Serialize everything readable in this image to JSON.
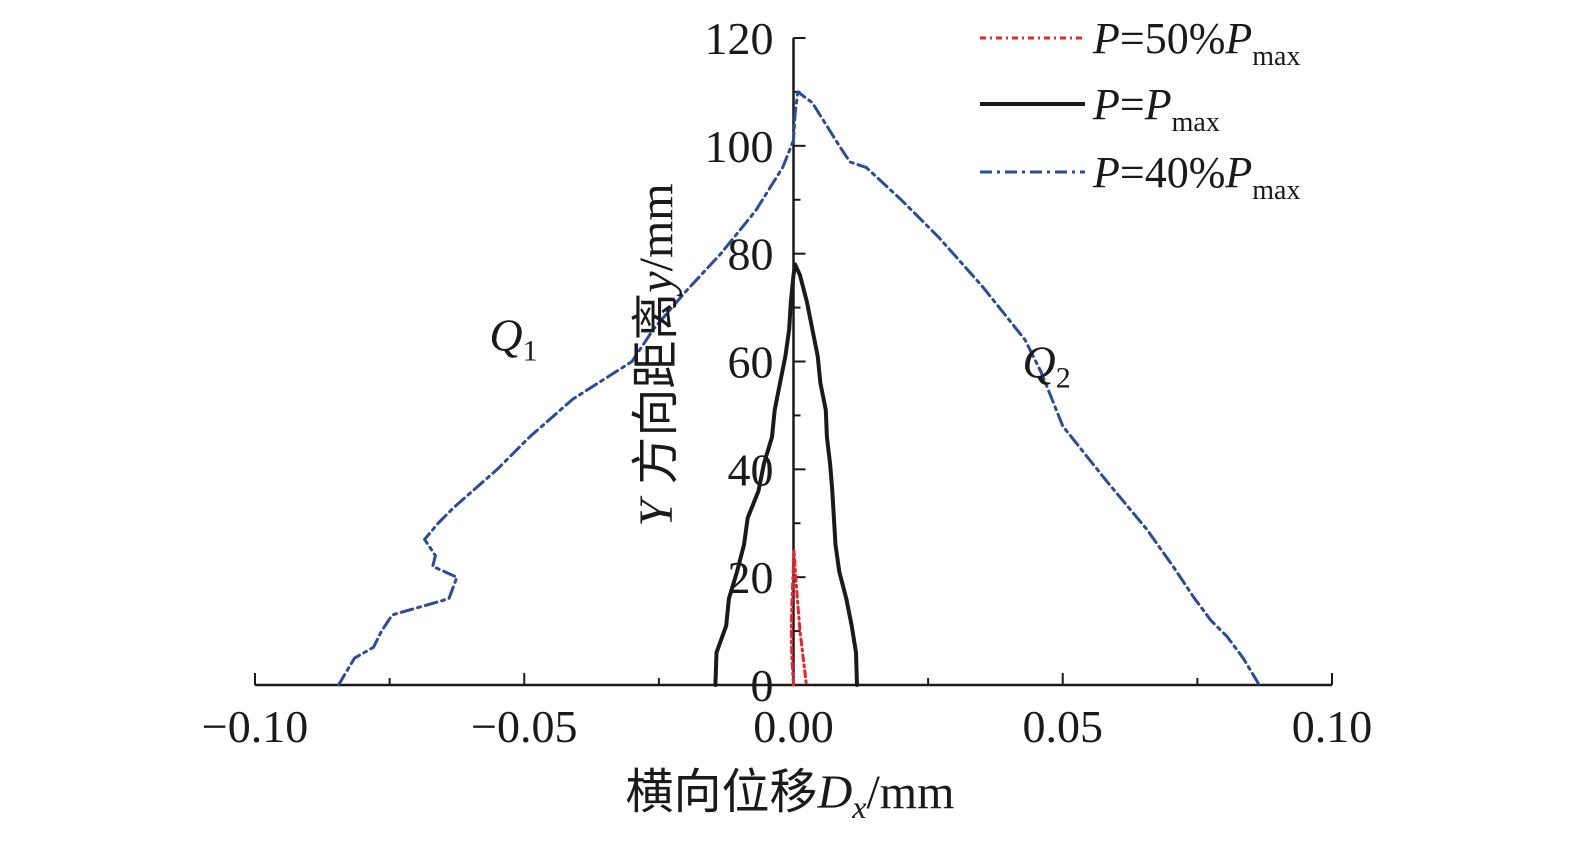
{
  "chart_data": {
    "type": "line",
    "xlabel": {
      "prefix": "横向位移",
      "var": "D",
      "sub": "x",
      "unit": "/mm"
    },
    "ylabel": {
      "var": "Y",
      "text": " 方向距离",
      "var2": "y",
      "unit": "/mm"
    },
    "xlim": [
      -0.1,
      0.1
    ],
    "ylim": [
      0,
      120
    ],
    "xticks": [
      -0.1,
      -0.05,
      0.0,
      0.05,
      0.1
    ],
    "xtick_labels": [
      "−0.10",
      "−0.05",
      "0.00",
      "0.05",
      "0.10"
    ],
    "yticks": [
      0,
      20,
      40,
      60,
      80,
      100,
      120
    ],
    "ytick_labels": [
      "0",
      "20",
      "40",
      "60",
      "80",
      "100",
      "120"
    ],
    "legend_position": "top-right",
    "annotations": [
      {
        "var": "Q",
        "sub": "1",
        "x": -0.052,
        "y": 62
      },
      {
        "var": "Q",
        "sub": "2",
        "x": 0.047,
        "y": 57
      }
    ],
    "series": [
      {
        "name": "P=50%Pmax",
        "legend": {
          "a": "P",
          "b": "=50%",
          "c": "P",
          "sub": "max"
        },
        "color": "#e8242a",
        "dash": "6,4,2,4",
        "width": 3,
        "points": [
          [
            0.0,
            0
          ],
          [
            -0.0003,
            5
          ],
          [
            -0.0004,
            10
          ],
          [
            -0.0003,
            15
          ],
          [
            -0.0001,
            20
          ],
          [
            0.0001,
            25
          ],
          [
            0.0004,
            20
          ],
          [
            0.0008,
            15
          ],
          [
            0.0012,
            10
          ],
          [
            0.0018,
            5
          ],
          [
            0.0024,
            0
          ]
        ]
      },
      {
        "name": "P=Pmax",
        "legend": {
          "a": "P",
          "b": "=",
          "c": "P",
          "sub": "max"
        },
        "color": "#1a1a1a",
        "dash": "",
        "width": 4,
        "points": [
          [
            -0.0145,
            0
          ],
          [
            -0.0143,
            6
          ],
          [
            -0.0125,
            11
          ],
          [
            -0.012,
            16
          ],
          [
            -0.0105,
            21
          ],
          [
            -0.0092,
            26
          ],
          [
            -0.0085,
            31
          ],
          [
            -0.0065,
            36
          ],
          [
            -0.0055,
            41
          ],
          [
            -0.004,
            46
          ],
          [
            -0.0035,
            51
          ],
          [
            -0.0025,
            56
          ],
          [
            -0.0015,
            61
          ],
          [
            -0.0008,
            66
          ],
          [
            -0.0005,
            71
          ],
          [
            0.0,
            76
          ],
          [
            0.0003,
            78
          ],
          [
            0.0012,
            76
          ],
          [
            0.0025,
            71
          ],
          [
            0.0035,
            66
          ],
          [
            0.0045,
            61
          ],
          [
            0.005,
            56
          ],
          [
            0.006,
            51
          ],
          [
            0.0062,
            46
          ],
          [
            0.0068,
            41
          ],
          [
            0.0072,
            36
          ],
          [
            0.0075,
            31
          ],
          [
            0.0078,
            26
          ],
          [
            0.0085,
            21
          ],
          [
            0.0098,
            16
          ],
          [
            0.0108,
            11
          ],
          [
            0.0116,
            6
          ],
          [
            0.0118,
            0
          ]
        ]
      },
      {
        "name": "P=40%Pmax",
        "legend": {
          "a": "P",
          "b": "=40%",
          "c": "P",
          "sub": "max"
        },
        "color": "#2b4c9b",
        "dash": "12,5,3,5",
        "width": 3,
        "points": [
          [
            -0.0845,
            0
          ],
          [
            -0.0815,
            5
          ],
          [
            -0.078,
            7
          ],
          [
            -0.0765,
            10
          ],
          [
            -0.0745,
            13
          ],
          [
            -0.071,
            14
          ],
          [
            -0.064,
            16
          ],
          [
            -0.0625,
            20
          ],
          [
            -0.067,
            22
          ],
          [
            -0.0665,
            24
          ],
          [
            -0.0685,
            27
          ],
          [
            -0.066,
            30
          ],
          [
            -0.063,
            33
          ],
          [
            -0.055,
            40
          ],
          [
            -0.049,
            46
          ],
          [
            -0.041,
            53
          ],
          [
            -0.03,
            60
          ],
          [
            -0.026,
            66
          ],
          [
            -0.02,
            73
          ],
          [
            -0.0135,
            80
          ],
          [
            -0.007,
            88
          ],
          [
            -0.002,
            96
          ],
          [
            0.0,
            101
          ],
          [
            0.0003,
            106
          ],
          [
            0.0008,
            110
          ],
          [
            0.0035,
            108
          ],
          [
            0.0085,
            100
          ],
          [
            0.0105,
            97
          ],
          [
            0.0135,
            96
          ],
          [
            0.02,
            90
          ],
          [
            0.027,
            83
          ],
          [
            0.035,
            74
          ],
          [
            0.043,
            64
          ],
          [
            0.046,
            58
          ],
          [
            0.05,
            48
          ],
          [
            0.058,
            38
          ],
          [
            0.0655,
            29
          ],
          [
            0.0705,
            22
          ],
          [
            0.0745,
            16
          ],
          [
            0.0775,
            12
          ],
          [
            0.0805,
            9
          ],
          [
            0.0835,
            5
          ],
          [
            0.0865,
            0
          ]
        ]
      }
    ]
  }
}
